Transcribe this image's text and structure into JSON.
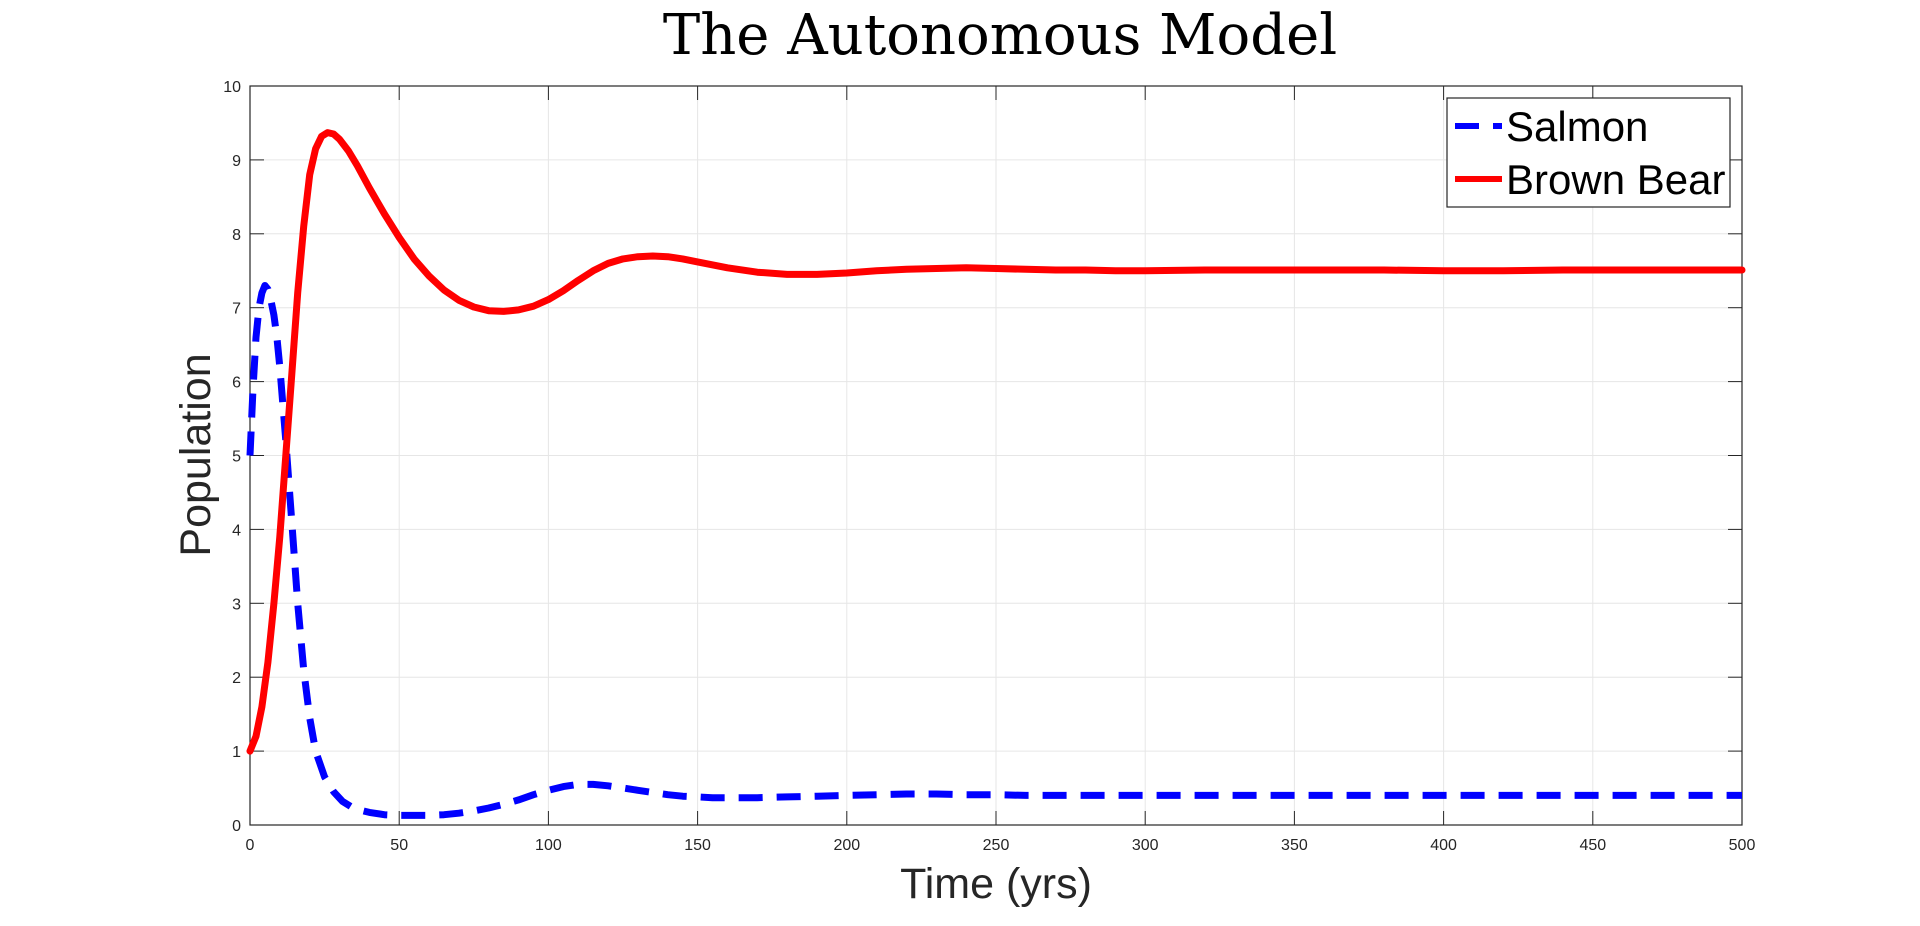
{
  "chart_data": {
    "type": "line",
    "title": "The Autonomous Model",
    "xlabel": "Time (yrs)",
    "ylabel": "Population",
    "xlim": [
      0,
      500
    ],
    "ylim": [
      0,
      10
    ],
    "xticks": [
      0,
      50,
      100,
      150,
      200,
      250,
      300,
      350,
      400,
      450,
      500
    ],
    "yticks": [
      0,
      1,
      2,
      3,
      4,
      5,
      6,
      7,
      8,
      9,
      10
    ],
    "grid": true,
    "legend_position": "top-right",
    "series": [
      {
        "name": "Salmon",
        "color": "#0000FF",
        "line_style": "dashed",
        "x": [
          0,
          1,
          2,
          3,
          4,
          5,
          6,
          7,
          8,
          9,
          10,
          12,
          14,
          16,
          18,
          20,
          22,
          25,
          28,
          31,
          35,
          40,
          45,
          50,
          55,
          60,
          65,
          70,
          75,
          80,
          85,
          90,
          95,
          100,
          105,
          110,
          115,
          120,
          125,
          130,
          135,
          140,
          145,
          150,
          155,
          160,
          170,
          180,
          190,
          200,
          210,
          220,
          230,
          240,
          250,
          260,
          270,
          280,
          290,
          300,
          320,
          340,
          360,
          380,
          400,
          420,
          440,
          460,
          480,
          500
        ],
        "y": [
          5.0,
          5.9,
          6.6,
          7.0,
          7.2,
          7.3,
          7.25,
          7.1,
          6.9,
          6.6,
          6.2,
          5.2,
          4.1,
          3.0,
          2.1,
          1.45,
          1.0,
          0.65,
          0.45,
          0.32,
          0.22,
          0.17,
          0.14,
          0.13,
          0.13,
          0.13,
          0.14,
          0.16,
          0.19,
          0.23,
          0.28,
          0.34,
          0.41,
          0.47,
          0.52,
          0.55,
          0.55,
          0.53,
          0.5,
          0.47,
          0.44,
          0.41,
          0.39,
          0.38,
          0.37,
          0.37,
          0.37,
          0.38,
          0.39,
          0.4,
          0.41,
          0.42,
          0.42,
          0.41,
          0.41,
          0.4,
          0.4,
          0.4,
          0.4,
          0.4,
          0.4,
          0.4,
          0.4,
          0.4,
          0.4,
          0.4,
          0.4,
          0.4,
          0.4,
          0.4
        ]
      },
      {
        "name": "Brown Bear",
        "color": "#FF0000",
        "line_style": "solid",
        "x": [
          0,
          2,
          4,
          6,
          8,
          10,
          12,
          14,
          16,
          18,
          20,
          22,
          24,
          26,
          28,
          30,
          33,
          36,
          40,
          45,
          50,
          55,
          60,
          65,
          70,
          75,
          80,
          85,
          90,
          95,
          100,
          105,
          110,
          115,
          120,
          125,
          130,
          135,
          140,
          145,
          150,
          160,
          170,
          180,
          190,
          200,
          210,
          220,
          230,
          240,
          250,
          260,
          270,
          280,
          290,
          300,
          320,
          340,
          360,
          380,
          400,
          420,
          440,
          460,
          480,
          500
        ],
        "y": [
          1.0,
          1.2,
          1.6,
          2.2,
          3.0,
          3.9,
          5.0,
          6.1,
          7.2,
          8.1,
          8.8,
          9.15,
          9.32,
          9.37,
          9.35,
          9.28,
          9.12,
          8.92,
          8.62,
          8.27,
          7.95,
          7.66,
          7.43,
          7.24,
          7.1,
          7.01,
          6.96,
          6.95,
          6.97,
          7.02,
          7.11,
          7.23,
          7.37,
          7.5,
          7.6,
          7.66,
          7.69,
          7.7,
          7.69,
          7.66,
          7.62,
          7.54,
          7.48,
          7.45,
          7.45,
          7.47,
          7.5,
          7.52,
          7.53,
          7.54,
          7.53,
          7.52,
          7.51,
          7.51,
          7.5,
          7.5,
          7.51,
          7.51,
          7.51,
          7.51,
          7.5,
          7.5,
          7.51,
          7.51,
          7.51,
          7.51
        ]
      }
    ]
  }
}
